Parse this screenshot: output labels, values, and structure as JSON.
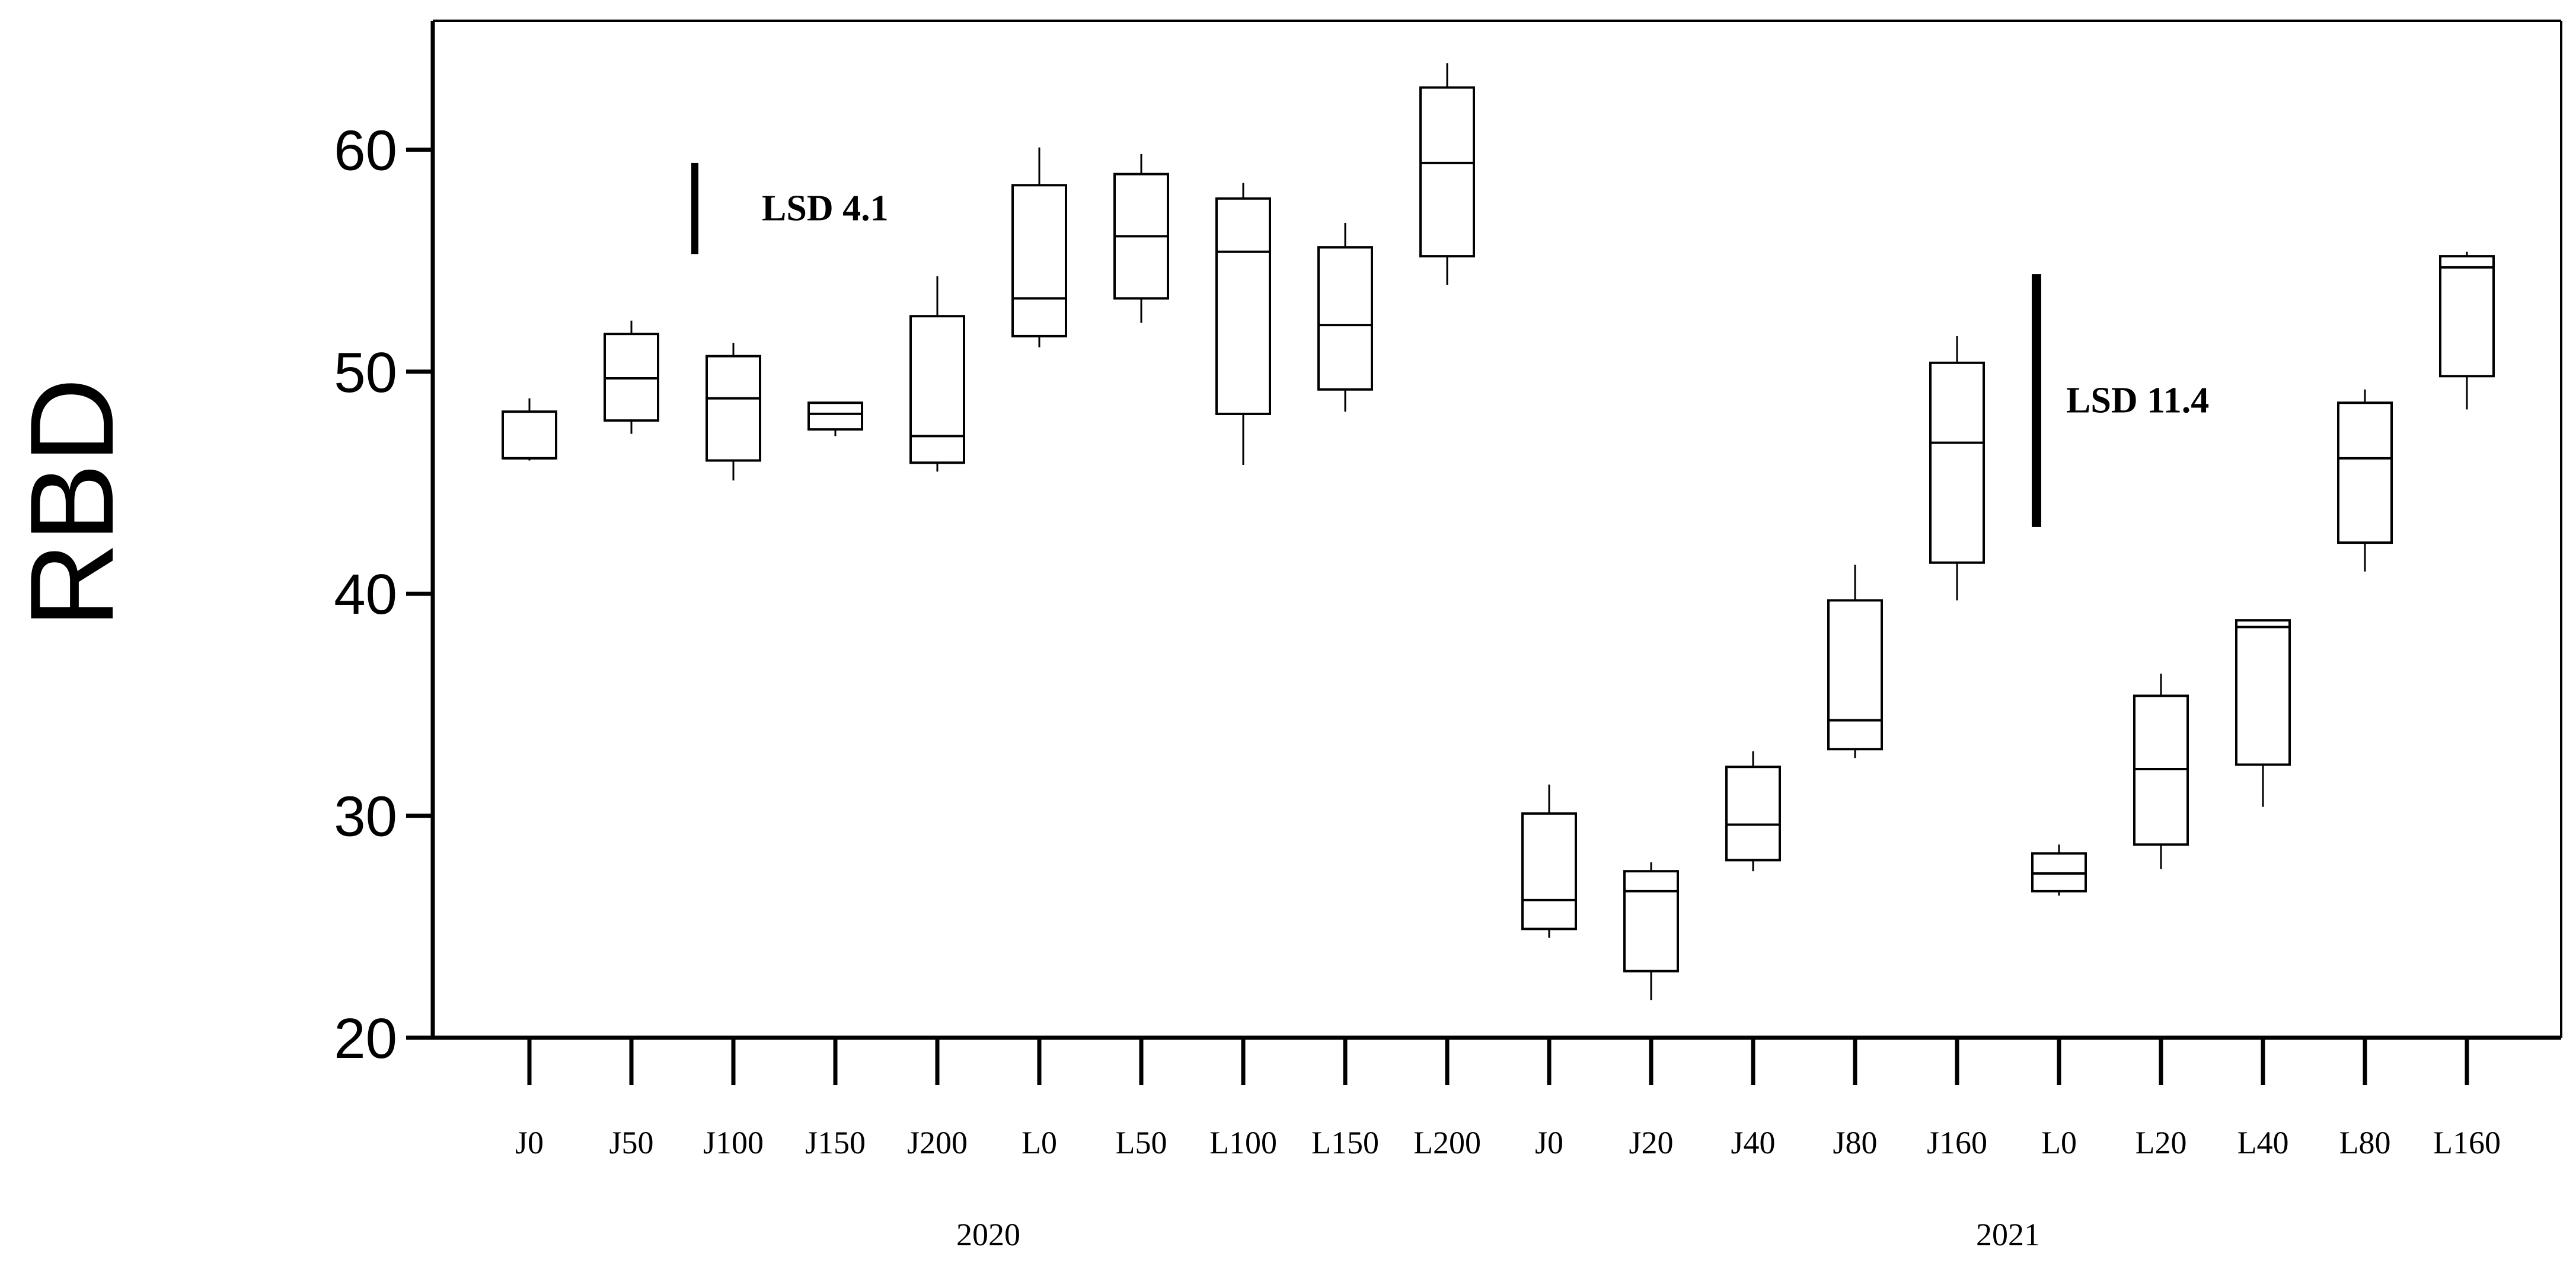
{
  "chart_data": {
    "type": "box",
    "ylabel": "RBD",
    "xlabel": "",
    "title": "",
    "ylim": [
      20,
      64
    ],
    "yticks": [
      20,
      30,
      40,
      50,
      60
    ],
    "grid": false,
    "groups": [
      {
        "name": "2020",
        "categories": [
          "J0",
          "J50",
          "J100",
          "J150",
          "J200",
          "L0",
          "L50",
          "L100",
          "L150",
          "L200"
        ],
        "boxes": [
          {
            "label": "J0",
            "min": 46.0,
            "q1": 46.1,
            "median": 46.1,
            "q3": 48.2,
            "max": 48.8
          },
          {
            "label": "J50",
            "min": 47.2,
            "q1": 47.8,
            "median": 49.7,
            "q3": 51.7,
            "max": 52.3
          },
          {
            "label": "J100",
            "min": 45.1,
            "q1": 46.0,
            "median": 48.8,
            "q3": 50.7,
            "max": 51.3
          },
          {
            "label": "J150",
            "min": 47.1,
            "q1": 47.4,
            "median": 48.1,
            "q3": 48.6,
            "max": 48.6
          },
          {
            "label": "J200",
            "min": 45.5,
            "q1": 45.9,
            "median": 47.1,
            "q3": 52.5,
            "max": 54.3
          },
          {
            "label": "L0",
            "min": 51.1,
            "q1": 51.6,
            "median": 53.3,
            "q3": 58.4,
            "max": 60.1
          },
          {
            "label": "L50",
            "min": 52.2,
            "q1": 53.3,
            "median": 56.1,
            "q3": 58.9,
            "max": 59.8
          },
          {
            "label": "L100",
            "min": 45.8,
            "q1": 48.1,
            "median": 55.4,
            "q3": 57.8,
            "max": 58.5
          },
          {
            "label": "L150",
            "min": 48.2,
            "q1": 49.2,
            "median": 52.1,
            "q3": 55.6,
            "max": 56.7
          },
          {
            "label": "L200",
            "min": 53.9,
            "q1": 55.2,
            "median": 59.4,
            "q3": 62.8,
            "max": 63.9
          }
        ],
        "lsd": {
          "label": "LSD 4.1",
          "value": 4.1,
          "top": 59.4
        }
      },
      {
        "name": "2021",
        "categories": [
          "J0",
          "J20",
          "J40",
          "J80",
          "J160",
          "L0",
          "L20",
          "L40",
          "L80",
          "L160"
        ],
        "boxes": [
          {
            "label": "J0",
            "min": 24.5,
            "q1": 24.9,
            "median": 26.2,
            "q3": 30.1,
            "max": 31.4
          },
          {
            "label": "J20",
            "min": 21.7,
            "q1": 23.0,
            "median": 26.6,
            "q3": 27.5,
            "max": 27.9
          },
          {
            "label": "J40",
            "min": 27.5,
            "q1": 28.0,
            "median": 29.6,
            "q3": 32.2,
            "max": 32.9
          },
          {
            "label": "J80",
            "min": 32.6,
            "q1": 33.0,
            "median": 34.3,
            "q3": 39.7,
            "max": 41.3
          },
          {
            "label": "J160",
            "min": 39.7,
            "q1": 41.4,
            "median": 46.8,
            "q3": 50.4,
            "max": 51.6
          },
          {
            "label": "L0",
            "min": 26.4,
            "q1": 26.6,
            "median": 27.4,
            "q3": 28.3,
            "max": 28.7
          },
          {
            "label": "L20",
            "min": 27.6,
            "q1": 28.7,
            "median": 32.1,
            "q3": 35.4,
            "max": 36.4
          },
          {
            "label": "L40",
            "min": 30.4,
            "q1": 32.3,
            "median": 38.5,
            "q3": 38.8,
            "max": 38.8
          },
          {
            "label": "L80",
            "min": 41.0,
            "q1": 42.3,
            "median": 46.1,
            "q3": 48.6,
            "max": 49.2
          },
          {
            "label": "L160",
            "min": 48.3,
            "q1": 49.8,
            "median": 54.7,
            "q3": 55.2,
            "max": 55.4
          }
        ],
        "lsd": {
          "label": "LSD 11.4",
          "value": 11.4,
          "top": 54.4
        }
      }
    ]
  }
}
